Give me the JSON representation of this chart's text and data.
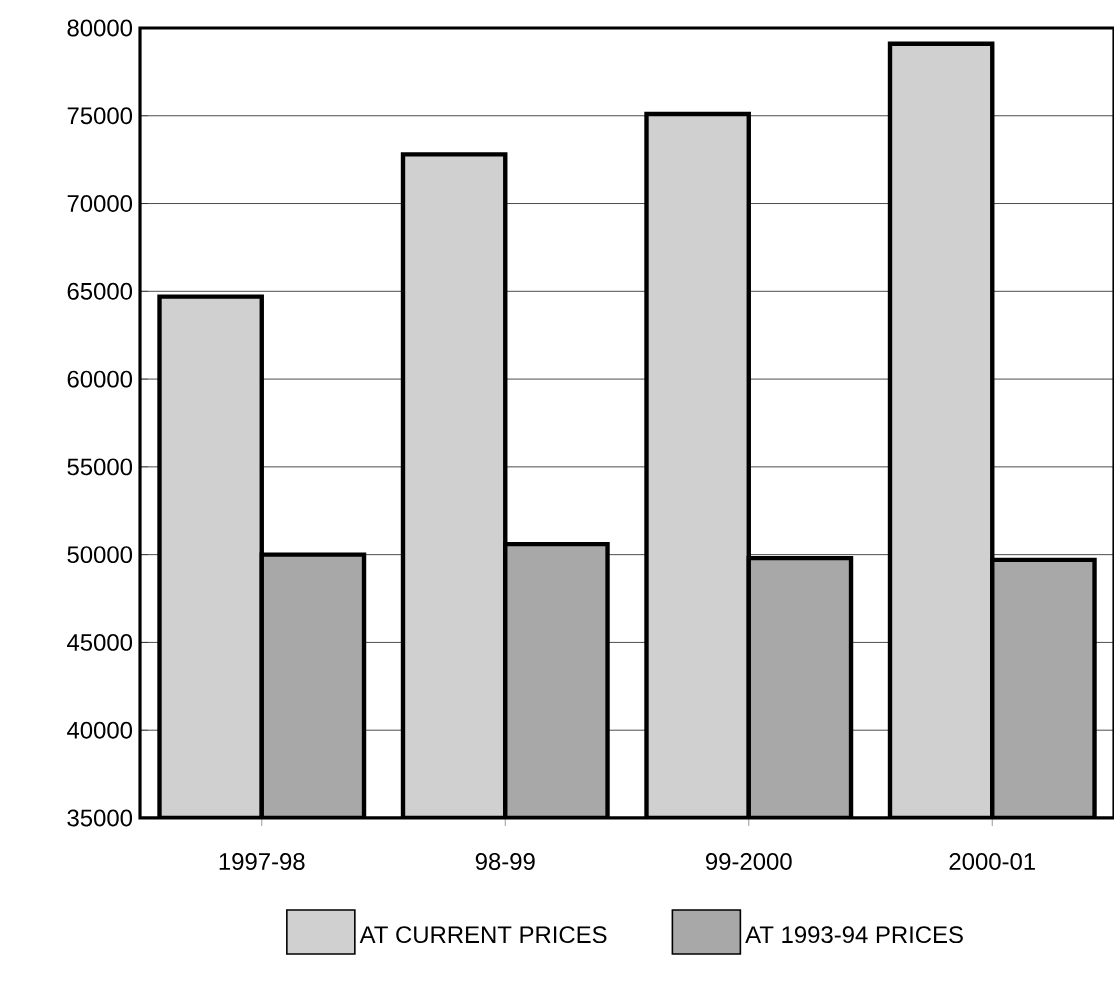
{
  "chart_data": {
    "type": "bar",
    "categories": [
      "1997-98",
      "98-99",
      "99-2000",
      "2000-01"
    ],
    "series": [
      {
        "name": "AT CURRENT PRICES",
        "color": "#d0d0d0",
        "values": [
          64700,
          72800,
          75100,
          79100
        ]
      },
      {
        "name": "AT 1993-94 PRICES",
        "color": "#a8a8a8",
        "values": [
          50000,
          50600,
          49800,
          49700
        ]
      }
    ],
    "ylim": [
      35000,
      80000
    ],
    "yticks": [
      35000,
      40000,
      45000,
      50000,
      55000,
      60000,
      65000,
      70000,
      75000,
      80000
    ],
    "grid": "y",
    "legend": "bottom"
  }
}
